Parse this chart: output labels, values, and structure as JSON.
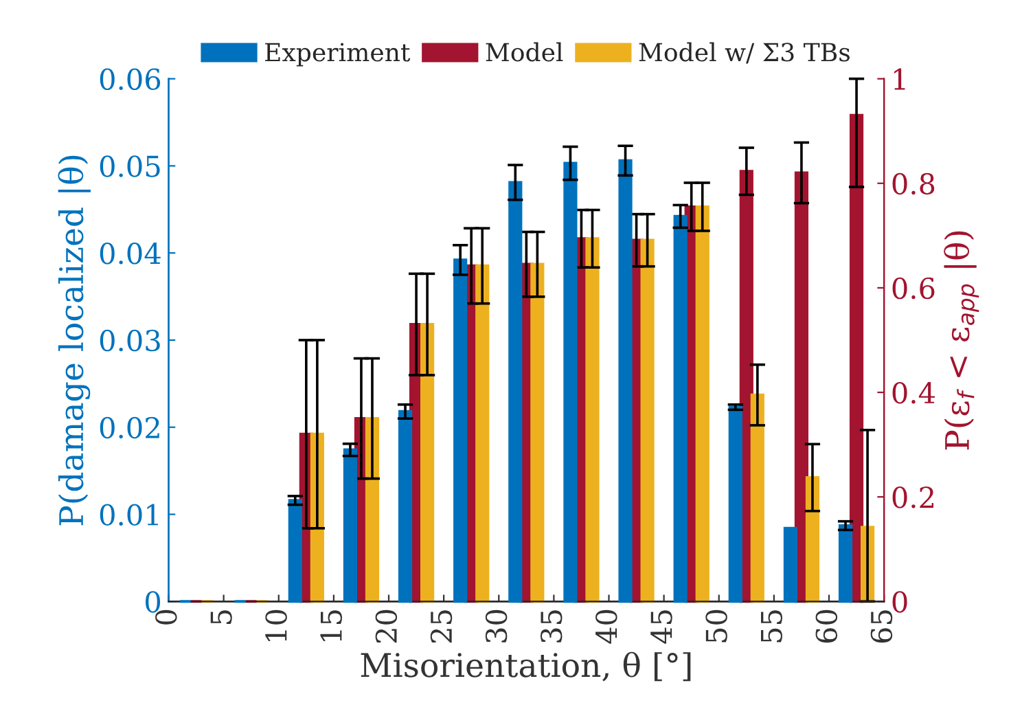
{
  "chart_data": {
    "type": "bar",
    "xlabel": "Misorientation, θ [°]",
    "ylabel": "P(damage localized |θ)",
    "y2label": "P(ε$_{f}$ < ε$_{app}$ |θ)",
    "x": [
      2.5,
      7.5,
      12.5,
      17.5,
      22.5,
      27.5,
      32.5,
      37.5,
      42.5,
      47.5,
      52.5,
      57.5,
      62.5
    ],
    "series": [
      {
        "name": "Experiment",
        "color": "#0072bd",
        "values": [
          0,
          0,
          0.0116,
          0.0174,
          0.0218,
          0.0392,
          0.0481,
          0.0503,
          0.0506,
          0.0442,
          0.0223,
          0.0084,
          0.0087
        ],
        "errors": [
          null,
          null,
          0.0005,
          0.0007,
          0.0008,
          0.0017,
          0.002,
          0.0019,
          0.0017,
          0.0013,
          0.0003,
          null,
          0.0005
        ]
      },
      {
        "name": "Model",
        "color": "#a2142f",
        "axis": "y2",
        "values": [
          0,
          0,
          0.32,
          0.35,
          0.53,
          0.642,
          0.645,
          0.694,
          0.691,
          0.755,
          0.823,
          0.82,
          0.93
        ],
        "errors": [
          null,
          null,
          0.18,
          0.115,
          0.097,
          0.072,
          0.062,
          0.055,
          0.05,
          0.046,
          0.045,
          0.058,
          [
            0.793,
            1.0
          ]
        ]
      },
      {
        "name": "Model w/ Σ3 TBs",
        "color": "#edb120",
        "axis": "y2",
        "values": [
          0,
          0,
          0.32,
          0.35,
          0.53,
          0.642,
          0.645,
          0.694,
          0.691,
          0.755,
          0.395,
          0.237,
          0.142
        ],
        "errors": [
          null,
          null,
          0.18,
          0.115,
          0.097,
          0.072,
          0.062,
          0.055,
          0.05,
          0.046,
          0.058,
          0.064,
          [
            0,
            0.328
          ]
        ]
      }
    ],
    "xlim": [
      0,
      65
    ],
    "xticks": [
      0,
      5,
      10,
      15,
      20,
      25,
      30,
      35,
      40,
      45,
      50,
      55,
      60,
      65
    ],
    "ylim": [
      0,
      0.06
    ],
    "yticks": [
      0,
      0.01,
      0.02,
      0.03,
      0.04,
      0.05,
      0.06
    ],
    "y2lim": [
      0,
      1
    ],
    "y2ticks": [
      0,
      0.2,
      0.4,
      0.6,
      0.8,
      1
    ],
    "legend": "top",
    "grid": false
  }
}
